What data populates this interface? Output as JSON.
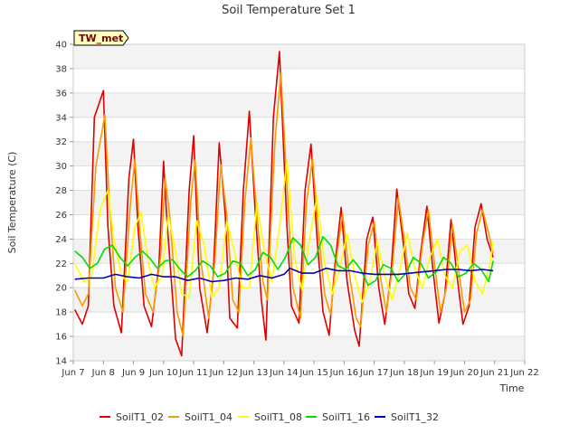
{
  "chart_data": {
    "type": "line",
    "title": "Soil Temperature Set 1",
    "xlabel": "Time",
    "ylabel": "Soil Temperature (C)",
    "xlim": [
      7,
      22
    ],
    "ylim": [
      14,
      40
    ],
    "x_ticks": [
      7,
      8,
      9,
      10,
      11,
      12,
      13,
      14,
      15,
      16,
      17,
      18,
      19,
      20,
      21,
      22
    ],
    "x_tick_labels": [
      "Jun 7",
      "Jun 8",
      "Jun 9",
      "Jun 10",
      "Jun 11",
      "Jun 12",
      "Jun 13",
      "Jun 14",
      "Jun 15",
      "Jun 16",
      "Jun 17",
      "Jun 18",
      "Jun 19",
      "Jun 20",
      "Jun 21",
      "Jun 22"
    ],
    "y_ticks": [
      14,
      16,
      18,
      20,
      22,
      24,
      26,
      28,
      30,
      32,
      34,
      36,
      38,
      40
    ],
    "grid": "horizontal-bands",
    "legend_position": "bottom",
    "annotation": "TW_met",
    "series": [
      {
        "name": "SoilT1_02",
        "color": "#dd0000",
        "x": [
          7.05,
          7.3,
          7.5,
          7.7,
          8.0,
          8.15,
          8.35,
          8.6,
          8.85,
          9.0,
          9.15,
          9.35,
          9.6,
          9.85,
          10.0,
          10.1,
          10.4,
          10.6,
          10.85,
          11.0,
          11.2,
          11.45,
          11.65,
          11.85,
          12.05,
          12.2,
          12.45,
          12.65,
          12.85,
          13.05,
          13.25,
          13.4,
          13.65,
          13.85,
          14.1,
          14.25,
          14.5,
          14.7,
          14.9,
          15.1,
          15.3,
          15.5,
          15.7,
          15.9,
          16.1,
          16.35,
          16.5,
          16.75,
          16.95,
          17.15,
          17.35,
          17.55,
          17.75,
          17.95,
          18.15,
          18.35,
          18.55,
          18.75,
          18.95,
          19.15,
          19.35,
          19.55,
          19.75,
          19.95,
          20.15,
          20.35,
          20.55,
          20.75,
          20.95
        ],
        "values": [
          18.2,
          17.0,
          18.5,
          34.0,
          36.2,
          25.0,
          18.5,
          16.3,
          29.0,
          32.2,
          25.0,
          18.5,
          16.8,
          22.0,
          30.4,
          26.0,
          15.8,
          14.4,
          28.0,
          32.5,
          20.0,
          16.3,
          21.0,
          31.9,
          26.0,
          17.5,
          16.7,
          28.0,
          34.5,
          26.0,
          19.0,
          15.7,
          34.0,
          39.4,
          25.0,
          18.5,
          17.1,
          28.0,
          31.8,
          24.0,
          18.0,
          16.1,
          22.0,
          26.6,
          20.5,
          16.5,
          15.2,
          24.0,
          25.8,
          20.0,
          17.0,
          21.0,
          28.1,
          24.0,
          19.5,
          18.3,
          23.0,
          26.7,
          21.5,
          17.1,
          19.5,
          25.6,
          21.0,
          17.0,
          18.5,
          25.0,
          26.9,
          24.0,
          22.5
        ]
      },
      {
        "name": "SoilT1_04",
        "color": "#ff9900",
        "x": [
          7.05,
          7.3,
          7.5,
          7.75,
          8.05,
          8.2,
          8.4,
          8.65,
          8.9,
          9.05,
          9.2,
          9.4,
          9.65,
          9.9,
          10.05,
          10.2,
          10.45,
          10.65,
          10.9,
          11.05,
          11.25,
          11.5,
          11.7,
          11.9,
          12.1,
          12.3,
          12.5,
          12.7,
          12.9,
          13.1,
          13.3,
          13.45,
          13.7,
          13.9,
          14.15,
          14.3,
          14.55,
          14.75,
          14.95,
          15.15,
          15.35,
          15.55,
          15.75,
          15.95,
          16.15,
          16.4,
          16.55,
          16.8,
          17.0,
          17.2,
          17.4,
          17.6,
          17.8,
          18.0,
          18.2,
          18.4,
          18.6,
          18.8,
          19.0,
          19.2,
          19.4,
          19.6,
          19.8,
          20.0,
          20.2,
          20.4,
          20.6,
          20.8,
          20.95
        ],
        "values": [
          19.8,
          18.5,
          19.5,
          30.0,
          34.2,
          27.0,
          20.0,
          18.0,
          27.0,
          30.6,
          25.0,
          19.5,
          18.0,
          22.5,
          29.0,
          26.0,
          18.0,
          16.0,
          27.0,
          30.5,
          22.0,
          17.5,
          22.0,
          30.1,
          26.0,
          19.0,
          18.0,
          27.0,
          32.3,
          26.0,
          20.5,
          19.0,
          32.0,
          37.7,
          26.0,
          20.0,
          17.5,
          27.0,
          30.6,
          24.5,
          19.5,
          17.8,
          22.5,
          26.1,
          21.5,
          17.5,
          16.8,
          23.5,
          25.4,
          21.0,
          18.0,
          21.5,
          27.4,
          24.0,
          20.0,
          19.0,
          23.5,
          26.4,
          22.0,
          18.0,
          20.0,
          25.2,
          21.5,
          18.0,
          19.0,
          24.5,
          26.4,
          24.5,
          22.8
        ]
      },
      {
        "name": "SoilT1_08",
        "color": "#ffff00",
        "x": [
          7.05,
          7.35,
          7.6,
          7.9,
          8.15,
          8.35,
          8.6,
          8.8,
          9.05,
          9.25,
          9.5,
          9.7,
          9.95,
          10.15,
          10.4,
          10.6,
          10.85,
          11.1,
          11.35,
          11.6,
          11.85,
          12.1,
          12.35,
          12.6,
          12.85,
          13.1,
          13.35,
          13.6,
          13.85,
          14.1,
          14.35,
          14.6,
          14.85,
          15.1,
          15.35,
          15.6,
          15.85,
          16.1,
          16.35,
          16.6,
          16.85,
          17.1,
          17.35,
          17.6,
          17.85,
          18.1,
          18.35,
          18.6,
          18.85,
          19.1,
          19.35,
          19.6,
          19.85,
          20.1,
          20.35,
          20.6,
          20.85,
          20.95
        ],
        "values": [
          22.0,
          20.5,
          20.8,
          26.5,
          28.0,
          24.0,
          21.0,
          20.5,
          25.0,
          26.2,
          22.0,
          20.0,
          21.0,
          26.0,
          23.0,
          19.5,
          19.2,
          25.5,
          23.5,
          19.2,
          20.0,
          25.5,
          23.0,
          20.0,
          20.0,
          27.0,
          23.0,
          20.5,
          25.0,
          30.5,
          22.5,
          19.8,
          24.0,
          27.5,
          22.0,
          19.5,
          21.5,
          24.5,
          21.0,
          18.8,
          20.5,
          23.8,
          21.0,
          19.0,
          21.5,
          24.5,
          21.5,
          20.0,
          22.5,
          24.0,
          21.0,
          20.0,
          23.0,
          23.5,
          20.5,
          19.5,
          22.0,
          23.8
        ]
      },
      {
        "name": "SoilT1_16",
        "color": "#00dd00",
        "x": [
          7.05,
          7.3,
          7.55,
          7.8,
          8.05,
          8.3,
          8.55,
          8.8,
          9.05,
          9.3,
          9.55,
          9.8,
          10.05,
          10.3,
          10.55,
          10.8,
          11.05,
          11.3,
          11.55,
          11.8,
          12.05,
          12.3,
          12.55,
          12.8,
          13.05,
          13.3,
          13.55,
          13.8,
          14.05,
          14.3,
          14.55,
          14.8,
          15.05,
          15.3,
          15.55,
          15.8,
          16.05,
          16.3,
          16.55,
          16.8,
          17.05,
          17.3,
          17.55,
          17.8,
          18.05,
          18.3,
          18.55,
          18.8,
          19.05,
          19.3,
          19.55,
          19.8,
          20.05,
          20.3,
          20.55,
          20.8,
          20.95
        ],
        "values": [
          23.0,
          22.5,
          21.6,
          22.0,
          23.2,
          23.5,
          22.5,
          21.8,
          22.5,
          23.0,
          22.4,
          21.6,
          22.2,
          22.3,
          21.5,
          20.9,
          21.4,
          22.2,
          21.8,
          20.9,
          21.2,
          22.2,
          22.0,
          21.0,
          21.5,
          22.9,
          22.5,
          21.5,
          22.5,
          24.1,
          23.5,
          21.9,
          22.5,
          24.2,
          23.5,
          21.8,
          21.5,
          22.3,
          21.5,
          20.2,
          20.6,
          21.9,
          21.6,
          20.5,
          21.2,
          22.5,
          22.0,
          20.8,
          21.3,
          22.5,
          22.0,
          20.9,
          21.2,
          22.0,
          21.5,
          20.5,
          22.2
        ]
      },
      {
        "name": "SoilT1_32",
        "color": "#0000bb",
        "x": [
          7.05,
          7.5,
          8.0,
          8.4,
          8.8,
          9.2,
          9.6,
          10.0,
          10.4,
          10.8,
          11.2,
          11.6,
          12.0,
          12.4,
          12.8,
          13.2,
          13.6,
          14.0,
          14.2,
          14.6,
          15.0,
          15.4,
          15.8,
          16.2,
          16.6,
          17.0,
          17.4,
          17.8,
          18.2,
          18.6,
          19.0,
          19.4,
          19.8,
          20.2,
          20.6,
          20.95
        ],
        "values": [
          20.7,
          20.8,
          20.8,
          21.1,
          20.9,
          20.8,
          21.1,
          20.9,
          20.9,
          20.6,
          20.8,
          20.5,
          20.6,
          20.8,
          20.7,
          21.0,
          20.8,
          21.1,
          21.6,
          21.2,
          21.2,
          21.6,
          21.4,
          21.4,
          21.2,
          21.1,
          21.1,
          21.1,
          21.2,
          21.3,
          21.4,
          21.5,
          21.5,
          21.4,
          21.5,
          21.4
        ]
      }
    ]
  }
}
